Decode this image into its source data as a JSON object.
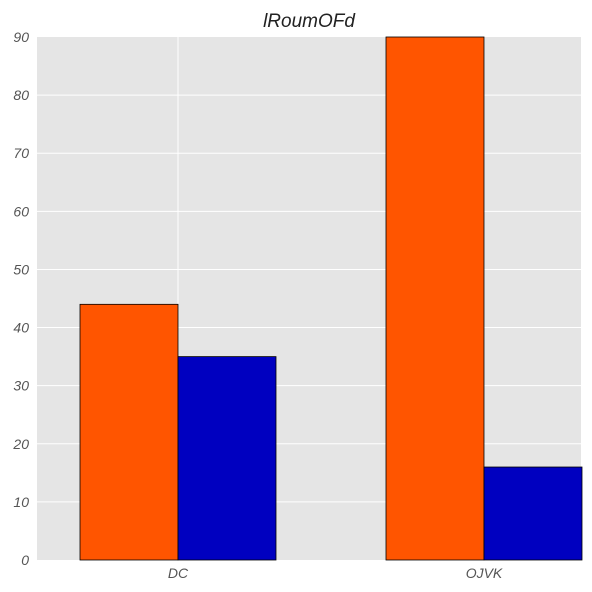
{
  "chart_data": {
    "type": "bar",
    "title": "lRoumOFd",
    "xlabel": "",
    "ylabel": "",
    "categories": [
      "DC",
      "OJVK"
    ],
    "series": [
      {
        "values": [
          44,
          90
        ],
        "color": "#ff5500"
      },
      {
        "values": [
          35,
          16
        ],
        "color": "#0000c0"
      }
    ],
    "ylim": [
      0,
      90
    ],
    "yticks": [
      0,
      10,
      20,
      30,
      40,
      50,
      60,
      70,
      80,
      90
    ],
    "grid": true,
    "background": "#e5e5e5",
    "bar_edge_color": "#000000"
  }
}
